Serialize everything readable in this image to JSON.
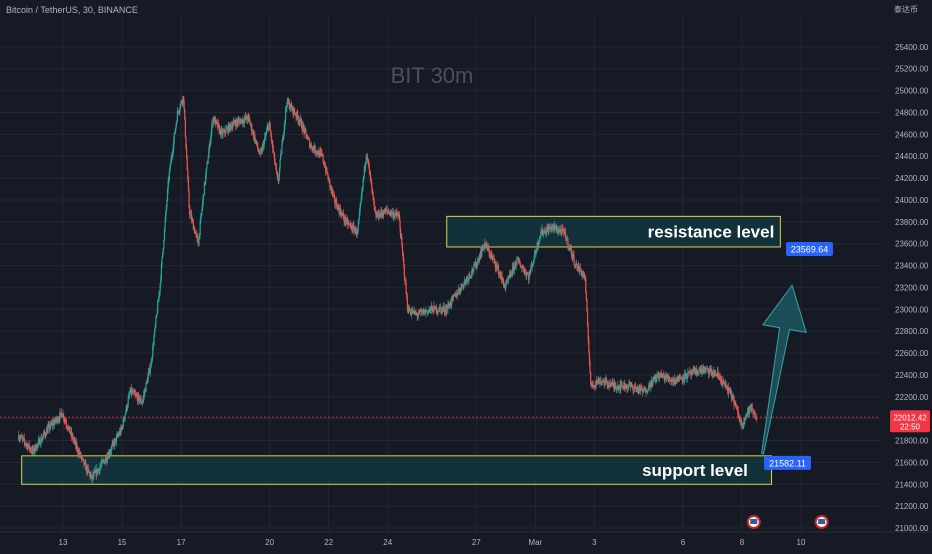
{
  "header": {
    "symbol": "Bitcoin / TetherUS, 30, BINANCE",
    "currency_unit": "泰达币"
  },
  "colors": {
    "background": "#161a25",
    "grid": "#232734",
    "up": "#26a69a",
    "down": "#ef5350",
    "zone_fill": "#12363e",
    "zone_border": "#d7d84a",
    "price_tag": "#2962ff",
    "last_price": "#f23645",
    "arrow": "#1e5f68",
    "watermark": "#4a505e",
    "axis_text": "#b2b5be"
  },
  "chart_data": {
    "type": "candlestick",
    "watermark": "BIT  30m",
    "y_axis": {
      "min": 21000,
      "max": 25600,
      "ticks": [
        "21000.00",
        "21200.00",
        "21400.00",
        "21600.00",
        "21800.00",
        "22000.00",
        "22200.00",
        "22400.00",
        "22600.00",
        "22800.00",
        "23000.00",
        "23200.00",
        "23400.00",
        "23600.00",
        "23800.00",
        "24000.00",
        "24200.00",
        "24400.00",
        "24600.00",
        "24800.00",
        "25000.00",
        "25200.00",
        "25400.00"
      ],
      "tick_values": [
        21000,
        21200,
        21400,
        21600,
        21800,
        22000,
        22200,
        22400,
        22600,
        22800,
        23000,
        23200,
        23400,
        23600,
        23800,
        24000,
        24200,
        24400,
        24600,
        24800,
        25000,
        25200,
        25400
      ]
    },
    "x_axis": {
      "range_days": [
        11.5,
        38.3
      ],
      "ticks": [
        {
          "label": "13",
          "day": 13
        },
        {
          "label": "15",
          "day": 15
        },
        {
          "label": "17",
          "day": 17
        },
        {
          "label": "20",
          "day": 20
        },
        {
          "label": "22",
          "day": 22
        },
        {
          "label": "24",
          "day": 24
        },
        {
          "label": "27",
          "day": 27
        },
        {
          "label": "Mar",
          "day": 29
        },
        {
          "label": "3",
          "day": 31
        },
        {
          "label": "6",
          "day": 34
        },
        {
          "label": "8",
          "day": 36
        },
        {
          "label": "10",
          "day": 38
        }
      ]
    },
    "price_path": [
      [
        11.5,
        21850
      ],
      [
        12.0,
        21700
      ],
      [
        12.5,
        21900
      ],
      [
        13.0,
        22050
      ],
      [
        13.3,
        21850
      ],
      [
        13.7,
        21600
      ],
      [
        14.0,
        21450
      ],
      [
        14.5,
        21650
      ],
      [
        15.0,
        21900
      ],
      [
        15.3,
        22250
      ],
      [
        15.7,
        22150
      ],
      [
        16.0,
        22500
      ],
      [
        16.3,
        23200
      ],
      [
        16.6,
        24200
      ],
      [
        16.9,
        24800
      ],
      [
        17.1,
        24950
      ],
      [
        17.3,
        23900
      ],
      [
        17.6,
        23600
      ],
      [
        17.8,
        24100
      ],
      [
        18.1,
        24750
      ],
      [
        18.4,
        24600
      ],
      [
        18.8,
        24700
      ],
      [
        19.3,
        24750
      ],
      [
        19.7,
        24400
      ],
      [
        20.0,
        24700
      ],
      [
        20.3,
        24150
      ],
      [
        20.6,
        24900
      ],
      [
        21.0,
        24750
      ],
      [
        21.4,
        24500
      ],
      [
        21.8,
        24400
      ],
      [
        22.2,
        24000
      ],
      [
        22.6,
        23800
      ],
      [
        23.0,
        23700
      ],
      [
        23.3,
        24450
      ],
      [
        23.6,
        23850
      ],
      [
        24.0,
        23900
      ],
      [
        24.4,
        23850
      ],
      [
        24.7,
        23000
      ],
      [
        25.0,
        22950
      ],
      [
        25.5,
        23000
      ],
      [
        26.0,
        23000
      ],
      [
        26.5,
        23200
      ],
      [
        27.0,
        23400
      ],
      [
        27.3,
        23600
      ],
      [
        27.7,
        23400
      ],
      [
        28.0,
        23200
      ],
      [
        28.4,
        23450
      ],
      [
        28.8,
        23300
      ],
      [
        29.2,
        23700
      ],
      [
        29.6,
        23750
      ],
      [
        30.0,
        23700
      ],
      [
        30.4,
        23400
      ],
      [
        30.7,
        23300
      ],
      [
        30.9,
        22300
      ],
      [
        31.2,
        22350
      ],
      [
        31.7,
        22300
      ],
      [
        32.2,
        22300
      ],
      [
        32.7,
        22250
      ],
      [
        33.2,
        22400
      ],
      [
        33.7,
        22350
      ],
      [
        34.2,
        22400
      ],
      [
        34.7,
        22450
      ],
      [
        35.2,
        22400
      ],
      [
        35.7,
        22200
      ],
      [
        36.0,
        21950
      ],
      [
        36.3,
        22100
      ],
      [
        36.5,
        22012
      ]
    ],
    "zones": [
      {
        "name": "resistance level",
        "label": "resistance level",
        "x_start_day": 26.0,
        "x_end_day": 37.3,
        "y_low": 23570,
        "y_high": 23850,
        "price_label": "23569.64"
      },
      {
        "name": "support level",
        "label": "support level",
        "x_start_day": 11.6,
        "x_end_day": 37.0,
        "y_low": 21400,
        "y_high": 21660,
        "price_label": "21582.11"
      }
    ],
    "last_price": {
      "value": 22012.42,
      "label": "22012.42",
      "countdown": "22:50"
    },
    "arrow": {
      "from": [
        36.7,
        21680
      ],
      "to": [
        37.7,
        23220
      ]
    },
    "event_markers": [
      36.4,
      38.7
    ]
  }
}
